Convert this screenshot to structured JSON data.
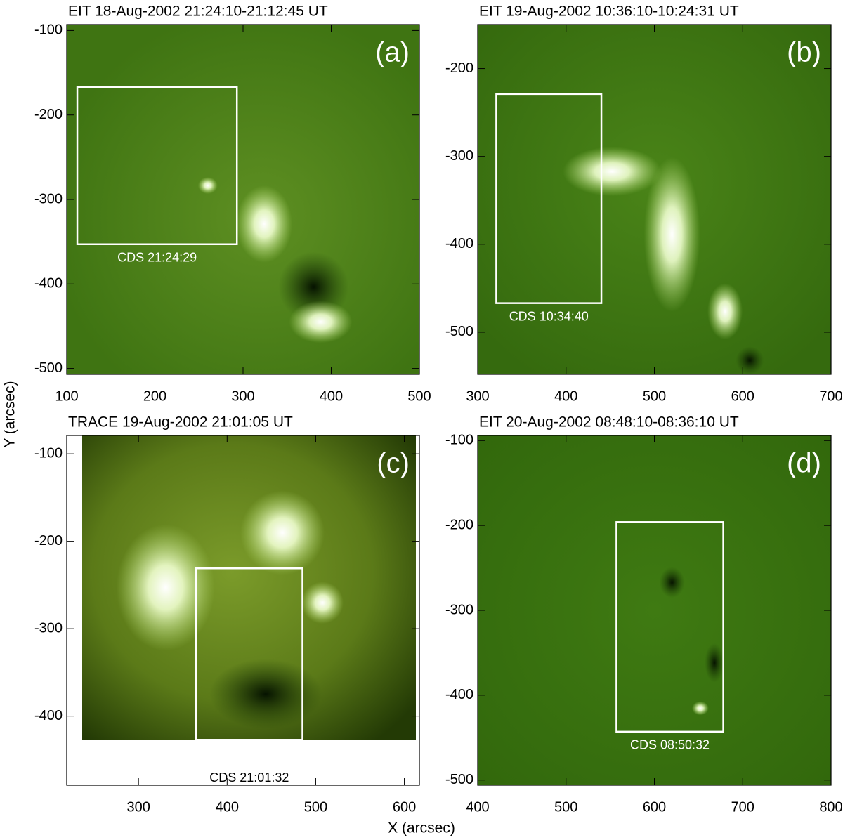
{
  "figure": {
    "xlabel": "X (arcsec)",
    "ylabel": "Y (arcsec)"
  },
  "chart_data": [
    {
      "type": "image",
      "title": "EIT 18-Aug-2002 21:24:10-21:12:45 UT",
      "panel_label": "(a)",
      "xlim": [
        100,
        500
      ],
      "ylim": [
        -507,
        -93
      ],
      "xticks": [
        100,
        200,
        300,
        400,
        500
      ],
      "yticks": [
        -500,
        -400,
        -300,
        -200,
        -100
      ],
      "box": {
        "x": [
          112,
          293
        ],
        "y": [
          -353,
          -167
        ]
      },
      "box_label": "CDS 21:24:29",
      "box_color": "#ffffff"
    },
    {
      "type": "image",
      "title": "EIT 19-Aug-2002 10:36:10-10:24:31 UT",
      "panel_label": "(b)",
      "xlim": [
        300,
        700
      ],
      "ylim": [
        -548,
        -150
      ],
      "xticks": [
        300,
        400,
        500,
        600,
        700
      ],
      "yticks": [
        -500,
        -400,
        -300,
        -200
      ],
      "box": {
        "x": [
          321,
          440
        ],
        "y": [
          -467,
          -229
        ]
      },
      "box_label": "CDS 10:34:40",
      "box_color": "#ffffff"
    },
    {
      "type": "image",
      "title": "TRACE 19-Aug-2002 21:01:05 UT",
      "panel_label": "(c)",
      "xlim": [
        219,
        617
      ],
      "ylim": [
        -479,
        -79
      ],
      "xticks": [
        300,
        400,
        500,
        600
      ],
      "yticks": [
        -400,
        -300,
        -200,
        -100
      ],
      "box": {
        "x": [
          365,
          485
        ],
        "y": [
          -427,
          -231
        ]
      },
      "box_label": "CDS 21:01:32",
      "box_color": "#ffffff"
    },
    {
      "type": "image",
      "title": "EIT 20-Aug-2002 08:48:10-08:36:10 UT",
      "panel_label": "(d)",
      "xlim": [
        400,
        800
      ],
      "ylim": [
        -506,
        -94
      ],
      "xticks": [
        400,
        500,
        600,
        700,
        800
      ],
      "yticks": [
        -500,
        -400,
        -300,
        -200,
        -100
      ],
      "box": {
        "x": [
          557,
          678
        ],
        "y": [
          -443,
          -196
        ]
      },
      "box_label": "CDS 08:50:32",
      "box_color": "#ffffff"
    }
  ]
}
